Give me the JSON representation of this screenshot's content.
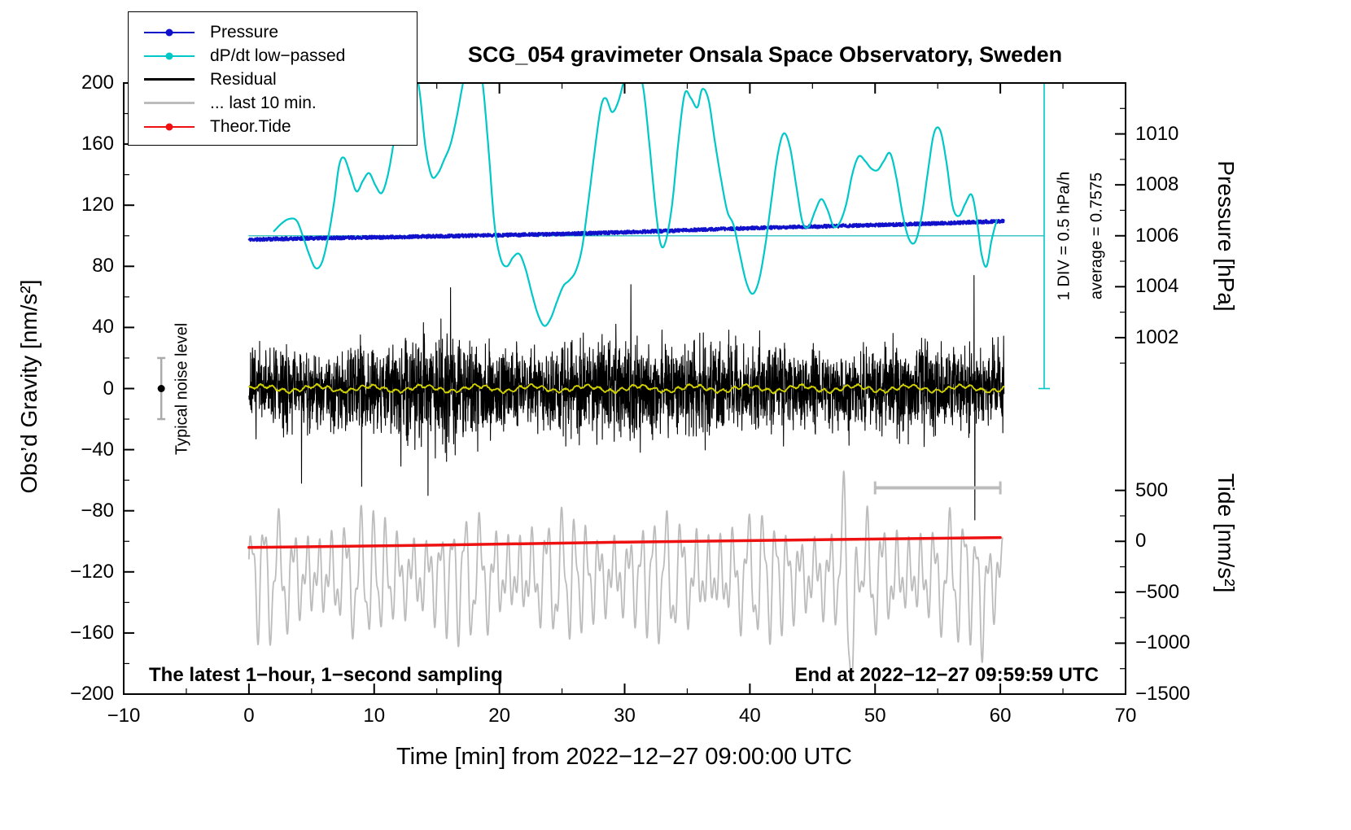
{
  "title": "SCG_054 gravimeter Onsala Space Observatory, Sweden",
  "axes": {
    "x_label": "Time [min] from 2022−12−27 09:00:00 UTC",
    "y_left_label": "Obs’d Gravity [nm/s²]",
    "y_right_pressure_label": "Pressure [hPa]",
    "y_right_tide_label": "Tide [nm/s²]"
  },
  "texts": {
    "sampling_note": "The latest 1−hour, 1−second sampling",
    "end_time": "End at 2022−12−27 09:59:59 UTC",
    "div_note": "1 DIV = 0.5 hPa/h",
    "average_note": "average = 0.7575",
    "noise_label": "Typical noise level"
  },
  "legend": [
    {
      "label": "Pressure",
      "color": "#1111cc",
      "dot": true,
      "width": 2
    },
    {
      "label": "dP/dt low−passed",
      "color": "#00c8c8",
      "dot": true,
      "width": 2
    },
    {
      "label": "Residual",
      "color": "#000000",
      "dot": false,
      "width": 3
    },
    {
      "label": "... last 10 min.",
      "color": "#bcbcbc",
      "dot": false,
      "width": 3
    },
    {
      "label": "Theor.Tide",
      "color": "#ee1111",
      "dot": true,
      "width": 2
    }
  ],
  "chart_data": {
    "type": "line",
    "xlim": [
      -10,
      70
    ],
    "ylim": [
      -200,
      200
    ],
    "x_ticks": [
      -10,
      0,
      10,
      20,
      30,
      40,
      50,
      60,
      70
    ],
    "x_minor_step": 5,
    "y_ticks": [
      -200,
      -160,
      -120,
      -80,
      -40,
      0,
      40,
      80,
      120,
      160,
      200
    ],
    "y_minor_step": 20,
    "pressure_axis": {
      "ref_value": 1006,
      "ref_gravity": 100,
      "gravity_per_unit": 16.6667,
      "label_ticks": [
        1010,
        1008,
        1006,
        1004,
        1002
      ],
      "minor_step": 1,
      "minor_range": [
        1001,
        1011
      ]
    },
    "tide_axis": {
      "ref_value": 0,
      "ref_gravity": -100,
      "gravity_per_unit": 0.0666667,
      "label_ticks": [
        500,
        0,
        -500,
        -1000,
        -1500
      ],
      "minor_step": 250,
      "minor_range": [
        -1500,
        500
      ]
    },
    "series": {
      "refline": {
        "y": 100,
        "x": [
          0,
          63.5
        ],
        "color": "#00b0b0"
      },
      "pressure": {
        "color": "#1111cc",
        "seed": 11,
        "noise": 1.1,
        "x_range": [
          0,
          60.3
        ],
        "stroke": 2.4,
        "points": [
          [
            0,
            97.5
          ],
          [
            4,
            98.2
          ],
          [
            8,
            98.8
          ],
          [
            12,
            99.2
          ],
          [
            16,
            99.8
          ],
          [
            20,
            100.4
          ],
          [
            24,
            101
          ],
          [
            28,
            101.8
          ],
          [
            32,
            102.8
          ],
          [
            36,
            104
          ],
          [
            40,
            105
          ],
          [
            44,
            105.8
          ],
          [
            48,
            106.6
          ],
          [
            52,
            107.4
          ],
          [
            56,
            108.4
          ],
          [
            60,
            109.5
          ]
        ]
      },
      "dpdt": {
        "color": "#00c8c8",
        "stroke": 2.2,
        "points": [
          [
            2,
            103
          ],
          [
            2.6,
            108
          ],
          [
            3.2,
            111
          ],
          [
            3.8,
            110
          ],
          [
            4.3,
            100
          ],
          [
            4.8,
            88
          ],
          [
            5.3,
            79
          ],
          [
            5.8,
            82
          ],
          [
            6.3,
            98
          ],
          [
            6.8,
            122
          ],
          [
            7.2,
            146
          ],
          [
            7.6,
            151
          ],
          [
            8.1,
            140
          ],
          [
            8.6,
            129
          ],
          [
            9.1,
            136
          ],
          [
            9.6,
            141
          ],
          [
            10.1,
            133
          ],
          [
            10.6,
            128
          ],
          [
            11.1,
            140
          ],
          [
            11.6,
            163
          ],
          [
            12.1,
            188
          ],
          [
            12.6,
            207
          ],
          [
            13.1,
            212
          ],
          [
            13.6,
            196
          ],
          [
            14.1,
            158
          ],
          [
            14.6,
            139
          ],
          [
            15.1,
            141
          ],
          [
            15.6,
            150
          ],
          [
            16.1,
            160
          ],
          [
            16.6,
            178
          ],
          [
            17.1,
            200
          ],
          [
            17.6,
            215
          ],
          [
            18.1,
            218
          ],
          [
            18.6,
            204
          ],
          [
            19.1,
            160
          ],
          [
            19.6,
            108
          ],
          [
            20.1,
            85
          ],
          [
            20.6,
            80
          ],
          [
            21.1,
            86
          ],
          [
            21.6,
            88
          ],
          [
            22.1,
            78
          ],
          [
            22.6,
            62
          ],
          [
            23.1,
            48
          ],
          [
            23.6,
            41
          ],
          [
            24.1,
            46
          ],
          [
            24.6,
            57
          ],
          [
            25.1,
            67
          ],
          [
            25.6,
            71
          ],
          [
            26.1,
            77
          ],
          [
            26.6,
            92
          ],
          [
            27.1,
            122
          ],
          [
            27.6,
            155
          ],
          [
            28.1,
            184
          ],
          [
            28.5,
            190
          ],
          [
            29,
            181
          ],
          [
            29.5,
            188
          ],
          [
            30,
            203
          ],
          [
            30.5,
            214
          ],
          [
            31,
            211
          ],
          [
            31.5,
            196
          ],
          [
            32,
            158
          ],
          [
            32.5,
            116
          ],
          [
            32.9,
            94
          ],
          [
            33.3,
            97
          ],
          [
            33.8,
            121
          ],
          [
            34.3,
            162
          ],
          [
            34.8,
            193
          ],
          [
            35.3,
            190
          ],
          [
            35.8,
            184
          ],
          [
            36.2,
            196
          ],
          [
            36.7,
            189
          ],
          [
            37.2,
            162
          ],
          [
            37.7,
            137
          ],
          [
            38.2,
            116
          ],
          [
            38.7,
            107
          ],
          [
            39.2,
            88
          ],
          [
            39.7,
            70
          ],
          [
            40.2,
            62
          ],
          [
            40.7,
            70
          ],
          [
            41.2,
            92
          ],
          [
            41.7,
            122
          ],
          [
            42.2,
            152
          ],
          [
            42.7,
            167
          ],
          [
            43.2,
            158
          ],
          [
            43.7,
            133
          ],
          [
            44.2,
            109
          ],
          [
            44.7,
            106
          ],
          [
            45.2,
            116
          ],
          [
            45.7,
            124
          ],
          [
            46.2,
            117
          ],
          [
            46.7,
            106
          ],
          [
            47.2,
            109
          ],
          [
            47.7,
            121
          ],
          [
            48.2,
            141
          ],
          [
            48.7,
            152
          ],
          [
            49.2,
            149
          ],
          [
            49.7,
            144
          ],
          [
            50.2,
            143
          ],
          [
            50.7,
            149
          ],
          [
            51.2,
            154
          ],
          [
            51.7,
            138
          ],
          [
            52.2,
            114
          ],
          [
            52.7,
            98
          ],
          [
            53.2,
            96
          ],
          [
            53.7,
            112
          ],
          [
            54.2,
            141
          ],
          [
            54.7,
            167
          ],
          [
            55.2,
            169
          ],
          [
            55.7,
            148
          ],
          [
            56.2,
            119
          ],
          [
            56.7,
            113
          ],
          [
            57.2,
            121
          ],
          [
            57.7,
            127
          ],
          [
            58.1,
            112
          ],
          [
            58.5,
            88
          ],
          [
            58.9,
            80
          ],
          [
            59.3,
            97
          ],
          [
            59.7,
            110
          ]
        ]
      },
      "residual": {
        "color": "#000000",
        "seed": 7,
        "points_per_min": 60,
        "x_range": [
          0,
          60.3
        ],
        "stroke": 1.1,
        "envelope": [
          [
            0,
            15
          ],
          [
            3,
            18
          ],
          [
            5,
            16
          ],
          [
            8,
            19
          ],
          [
            12,
            22
          ],
          [
            15,
            23
          ],
          [
            18,
            21
          ],
          [
            21,
            17
          ],
          [
            24,
            18
          ],
          [
            27,
            21
          ],
          [
            30,
            22
          ],
          [
            33,
            20
          ],
          [
            36,
            21
          ],
          [
            39,
            17
          ],
          [
            42,
            19
          ],
          [
            45,
            17
          ],
          [
            48,
            16
          ],
          [
            51,
            17
          ],
          [
            54,
            19
          ],
          [
            57,
            18
          ],
          [
            60,
            17
          ]
        ],
        "spikes": [
          {
            "x": 57.97,
            "v": -86
          },
          {
            "x": 57.9,
            "v": 74
          },
          {
            "x": 14.3,
            "v": -70
          },
          {
            "x": 16.1,
            "v": 66
          },
          {
            "x": 4.2,
            "v": -62
          },
          {
            "x": 30.5,
            "v": 68
          },
          {
            "x": 9.0,
            "v": -64
          }
        ]
      },
      "residual_mean": {
        "color": "#d2d200",
        "seed": 5,
        "a1": 1.7,
        "p1": 4.3,
        "a2": 1.1,
        "p2": 0.9,
        "noise": 0.9,
        "x_range": [
          0,
          60.3
        ],
        "stroke": 1.8
      },
      "last10": {
        "color": "#bcbcbc",
        "stroke": 1.8,
        "x_range": [
          0,
          60.2
        ],
        "base": -123,
        "amp_base": 24,
        "amp_mod": 10,
        "amp_period": 7.9,
        "period1": 1.07,
        "amp2": 13,
        "period2": 0.47,
        "phase_mod": 0.8,
        "phase_period": 5.3,
        "bursts": [
          {
            "x": 48.15,
            "w": 0.28,
            "a": -75
          },
          {
            "x": 47.65,
            "w": 0.2,
            "a": 52
          },
          {
            "x": 48.65,
            "w": 0.18,
            "a": 42
          },
          {
            "x": 58.6,
            "w": 0.3,
            "a": -18
          }
        ]
      },
      "tide": {
        "color": "#ee1111",
        "stroke": 3.5,
        "points": [
          [
            0,
            -104
          ],
          [
            15,
            -102.5
          ],
          [
            30,
            -100.5
          ],
          [
            45,
            -99
          ],
          [
            60,
            -97.5
          ]
        ]
      },
      "div_indicator": {
        "x": 63.5,
        "y": [
          0,
          200
        ],
        "cap": 7,
        "color": "#00c8c8"
      },
      "noise_marker": {
        "x": -7,
        "y": 0,
        "half": 20,
        "cap": 5,
        "bar_color": "#ababab",
        "dot_color": "#000000"
      },
      "ten_min_bar": {
        "x": [
          50,
          60
        ],
        "y": -65,
        "cap": 8,
        "color": "#bcbcbc"
      }
    }
  }
}
